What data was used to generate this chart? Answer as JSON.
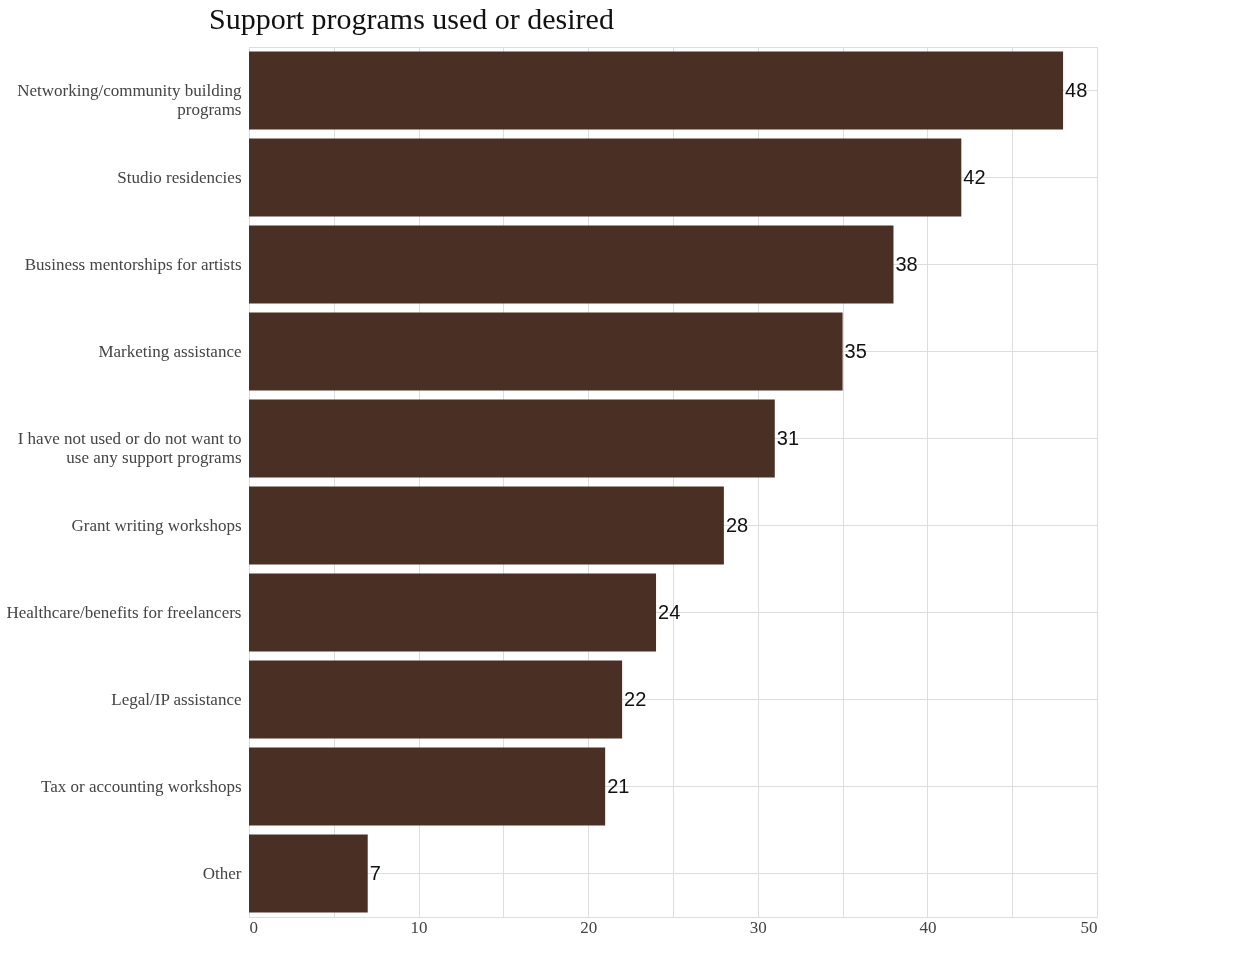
{
  "chart_data": {
    "type": "bar",
    "orientation": "horizontal",
    "title": "Support programs used or desired",
    "categories": [
      "Networking/community building programs",
      "Studio residencies",
      "Business mentorships for artists",
      "Marketing assistance",
      "I have not used or do not want to use any support programs",
      "Grant writing workshops",
      "Healthcare/benefits for freelancers",
      "Legal/IP assistance",
      "Tax or accounting workshops",
      "Other"
    ],
    "values": [
      48,
      42,
      38,
      35,
      31,
      28,
      24,
      22,
      21,
      7
    ],
    "color": "#4a2f25",
    "xlim": [
      0,
      50
    ],
    "xticks": [
      0,
      {
        "value": 5,
        "label": null
      },
      10,
      {
        "value": 15,
        "label": null
      },
      20,
      {
        "value": 25,
        "label": null
      },
      30,
      {
        "value": 35,
        "label": null
      },
      40,
      {
        "value": 45,
        "label": null
      },
      50
    ],
    "grid": true,
    "data_labels": true
  }
}
